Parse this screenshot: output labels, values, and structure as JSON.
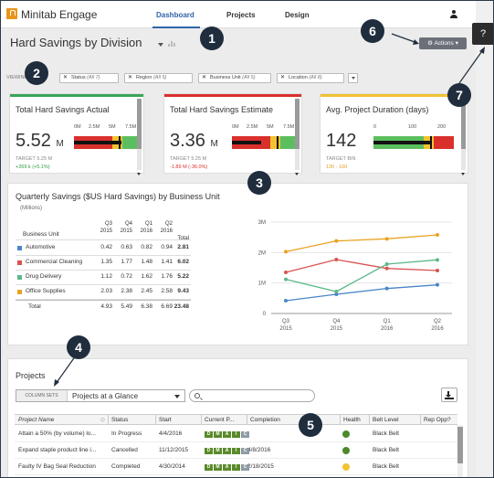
{
  "app": {
    "name": "Minitab Engage"
  },
  "nav": {
    "tabs": [
      "Dashboard",
      "Projects",
      "Design"
    ],
    "active": "Dashboard"
  },
  "help": {
    "label": "?"
  },
  "page": {
    "title": "Hard Savings by Division"
  },
  "actions": {
    "label": "Actions"
  },
  "filters": {
    "label": "VIEWING",
    "chips": [
      {
        "name": "Status",
        "value": "(All 7)"
      },
      {
        "name": "Region",
        "value": "(All 5)"
      },
      {
        "name": "Business Unit",
        "value": "(All 5)"
      },
      {
        "name": "Location",
        "value": "(All 8)"
      }
    ]
  },
  "kpis": [
    {
      "title": "Total Hard Savings Actual",
      "value": "5.52",
      "unit": "M",
      "scale": [
        "0M",
        "2.5M",
        "5M",
        "7.5M"
      ],
      "target": "TARGET 5.25 M",
      "delta": "+269 k (+5.1%)",
      "delta_color": "#2e9b3a",
      "accent": "#3aa657",
      "fraction": 0.74,
      "target_fraction": 0.7
    },
    {
      "title": "Total Hard Savings Estimate",
      "value": "3.36",
      "unit": "M",
      "scale": [
        "0M",
        "2.5M",
        "5M",
        "7.5M"
      ],
      "target": "TARGET 5.25 M",
      "delta": "-1.89 M (-36.0%)",
      "delta_color": "#d9302c",
      "accent": "#d9302c",
      "fraction": 0.45,
      "target_fraction": 0.7
    },
    {
      "title": "Avg. Project Duration (days)",
      "value": "142",
      "unit": "",
      "scale": [
        "0",
        "100",
        "200"
      ],
      "target": "TARGET BIN",
      "delta": "130 - 160",
      "delta_color": "#e59b1e",
      "accent": "#f2c230",
      "fraction": 0.71,
      "target_fraction": 0.71
    }
  ],
  "quarterly": {
    "title": "Quarterly Savings ($US Hard Savings) by Business Unit",
    "subtitle": "(Millions)",
    "col_label": "Business Unit",
    "quarters": [
      {
        "q": "Q3",
        "y": "2015"
      },
      {
        "q": "Q4",
        "y": "2015"
      },
      {
        "q": "Q1",
        "y": "2016"
      },
      {
        "q": "Q2",
        "y": "2016"
      }
    ],
    "total_label": "Total",
    "rows": [
      {
        "name": "Automotive",
        "color": "#4a86c8",
        "values": [
          "0.42",
          "0.63",
          "0.82",
          "0.94"
        ],
        "total": "2.81"
      },
      {
        "name": "Commercial Cleaning",
        "color": "#d9534f",
        "values": [
          "1.35",
          "1.77",
          "1.48",
          "1.41"
        ],
        "total": "6.02"
      },
      {
        "name": "Drug Delivery",
        "color": "#5cb88a",
        "values": [
          "1.12",
          "0.72",
          "1.62",
          "1.76"
        ],
        "total": "5.22"
      },
      {
        "name": "Office Supplies",
        "color": "#e9a321",
        "values": [
          "2.03",
          "2.38",
          "2.45",
          "2.58"
        ],
        "total": "9.43"
      }
    ],
    "totals_row": {
      "name": "Total",
      "values": [
        "4.93",
        "5.49",
        "6.38",
        "6.69"
      ],
      "total": "23.48"
    }
  },
  "chart_data": {
    "type": "line",
    "categories": [
      "Q3 2015",
      "Q4 2015",
      "Q1 2016",
      "Q2 2016"
    ],
    "category_lines": [
      [
        "Q3",
        "2015"
      ],
      [
        "Q4",
        "2015"
      ],
      [
        "Q1",
        "2016"
      ],
      [
        "Q2",
        "2016"
      ]
    ],
    "yticks": [
      "0",
      "1M",
      "2M",
      "3M"
    ],
    "ylim": [
      0,
      3
    ],
    "series": [
      {
        "color": "#4a86c8",
        "values": [
          0.42,
          0.63,
          0.82,
          0.94
        ]
      },
      {
        "color": "#d9534f",
        "values": [
          1.35,
          1.77,
          1.48,
          1.41
        ]
      },
      {
        "color": "#5cb88a",
        "values": [
          1.12,
          0.72,
          1.62,
          1.76
        ]
      },
      {
        "color": "#e9a321",
        "values": [
          2.03,
          2.38,
          2.45,
          2.58
        ]
      }
    ],
    "grid": true
  },
  "projects": {
    "title": "Projects",
    "column_sets_label": "COLUMN SETS",
    "column_set": "Projects at a Glance",
    "columns": [
      "Project Name",
      "Status",
      "Start",
      "Current P...",
      "Completion",
      "Health",
      "Belt Level",
      "Rep Opp?"
    ],
    "rows": [
      {
        "name": "Attain a 50% (by volume) lo...",
        "status": "In Progress",
        "start": "4/4/2016",
        "completion": "",
        "health": "#4a8a2a",
        "belt": "Black Belt"
      },
      {
        "name": "Expand staple product line i...",
        "status": "Cancelled",
        "start": "11/12/2015",
        "completion": "4/8/2016",
        "health": "#4a8a2a",
        "belt": "Black Belt"
      },
      {
        "name": "Faulty IV Bag Seal Reduction",
        "status": "Completed",
        "start": "4/30/2014",
        "completion": "2/18/2015",
        "health": "#f2c230",
        "belt": "Black Belt"
      }
    ],
    "phase_letters": [
      "D",
      "M",
      "A",
      "I",
      "C"
    ],
    "phase_colors": [
      "#5a8a2a",
      "#5a8a2a",
      "#5a8a2a",
      "#5a8a2a",
      "#8e9aa6"
    ]
  },
  "callouts": [
    "1",
    "2",
    "3",
    "4",
    "5",
    "6",
    "7"
  ]
}
